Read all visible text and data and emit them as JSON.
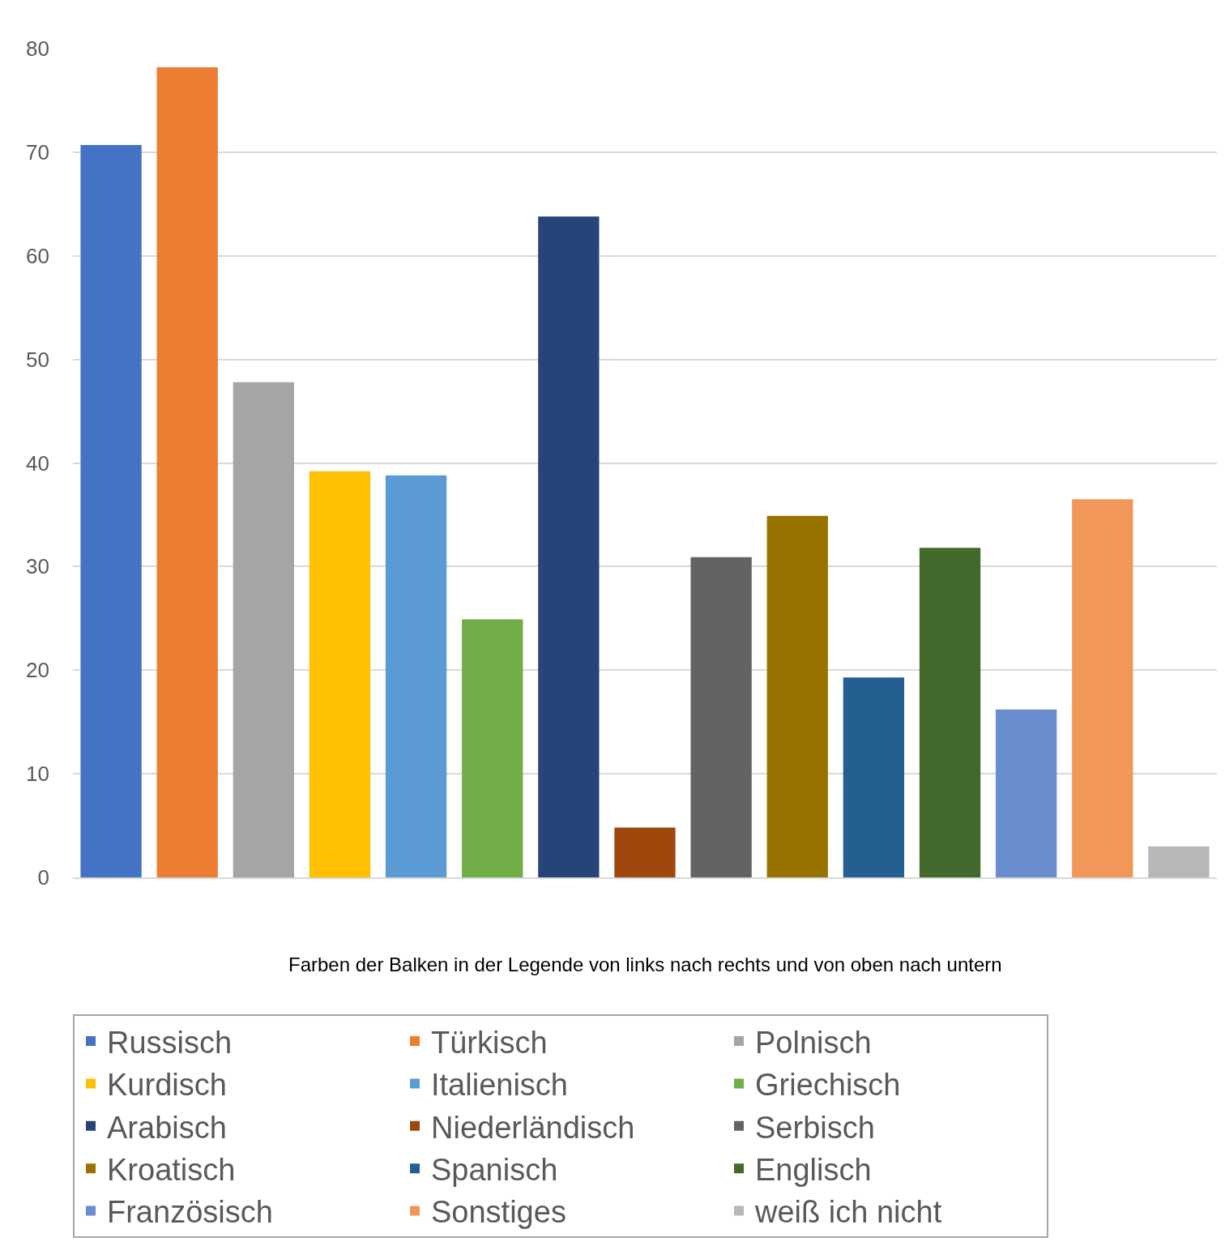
{
  "chart_data": {
    "type": "bar",
    "categories": [
      null,
      null,
      null,
      null,
      null,
      null,
      null,
      null,
      null,
      null,
      null,
      null,
      null,
      null,
      null
    ],
    "series": [
      {
        "name": "Russisch",
        "color": "#4472c4",
        "values": [
          70.7,
          null,
          null,
          null,
          null,
          null,
          null,
          null,
          null,
          null,
          null,
          null,
          null,
          null,
          null
        ]
      },
      {
        "name": "Türkisch",
        "color": "#ed7d31",
        "values": [
          null,
          78.2,
          null,
          null,
          null,
          null,
          null,
          null,
          null,
          null,
          null,
          null,
          null,
          null,
          null
        ]
      },
      {
        "name": "Polnisch",
        "color": "#a5a5a5",
        "values": [
          null,
          null,
          47.8,
          null,
          null,
          null,
          null,
          null,
          null,
          null,
          null,
          null,
          null,
          null,
          null
        ]
      },
      {
        "name": "Kurdisch",
        "color": "#ffc000",
        "values": [
          null,
          null,
          null,
          39.2,
          null,
          null,
          null,
          null,
          null,
          null,
          null,
          null,
          null,
          null,
          null
        ]
      },
      {
        "name": "Italienisch",
        "color": "#5b9bd5",
        "values": [
          null,
          null,
          null,
          null,
          38.8,
          null,
          null,
          null,
          null,
          null,
          null,
          null,
          null,
          null,
          null
        ]
      },
      {
        "name": "Griechisch",
        "color": "#70ad47",
        "values": [
          null,
          null,
          null,
          null,
          null,
          24.9,
          null,
          null,
          null,
          null,
          null,
          null,
          null,
          null,
          null
        ]
      },
      {
        "name": "Arabisch",
        "color": "#264478",
        "values": [
          null,
          null,
          null,
          null,
          null,
          null,
          63.8,
          null,
          null,
          null,
          null,
          null,
          null,
          null,
          null
        ]
      },
      {
        "name": "Niederländisch",
        "color": "#9e480e",
        "values": [
          null,
          null,
          null,
          null,
          null,
          null,
          null,
          4.8,
          null,
          null,
          null,
          null,
          null,
          null,
          null
        ]
      },
      {
        "name": "Serbisch",
        "color": "#636363",
        "values": [
          null,
          null,
          null,
          null,
          null,
          null,
          null,
          null,
          30.9,
          null,
          null,
          null,
          null,
          null,
          null
        ]
      },
      {
        "name": "Kroatisch",
        "color": "#997300",
        "values": [
          null,
          null,
          null,
          null,
          null,
          null,
          null,
          null,
          null,
          34.9,
          null,
          null,
          null,
          null,
          null
        ]
      },
      {
        "name": "Spanisch",
        "color": "#255e91",
        "values": [
          null,
          null,
          null,
          null,
          null,
          null,
          null,
          null,
          null,
          null,
          19.3,
          null,
          null,
          null,
          null
        ]
      },
      {
        "name": "Englisch",
        "color": "#43682b",
        "values": [
          null,
          null,
          null,
          null,
          null,
          null,
          null,
          null,
          null,
          null,
          null,
          31.8,
          null,
          null,
          null
        ]
      },
      {
        "name": "Französisch",
        "color": "#698ed0",
        "values": [
          null,
          null,
          null,
          null,
          null,
          null,
          null,
          null,
          null,
          null,
          null,
          null,
          16.2,
          null,
          null
        ]
      },
      {
        "name": "Sonstiges",
        "color": "#f1975a",
        "values": [
          null,
          null,
          null,
          null,
          null,
          null,
          null,
          null,
          null,
          null,
          null,
          null,
          null,
          36.5,
          null
        ]
      },
      {
        "name": "weiß ich nicht",
        "color": "#b7b7b7",
        "values": [
          null,
          null,
          null,
          null,
          null,
          null,
          null,
          null,
          null,
          null,
          null,
          null,
          null,
          null,
          3.0
        ]
      }
    ],
    "ylim": [
      0,
      80
    ],
    "yticks": [
      0,
      10,
      20,
      30,
      40,
      50,
      60,
      70,
      80
    ],
    "grid": "y",
    "legend": "bottom",
    "tick_labels": "y",
    "annotations": [
      "Farben der Balken in der Legende von links nach rechts und von oben nach untern"
    ]
  }
}
